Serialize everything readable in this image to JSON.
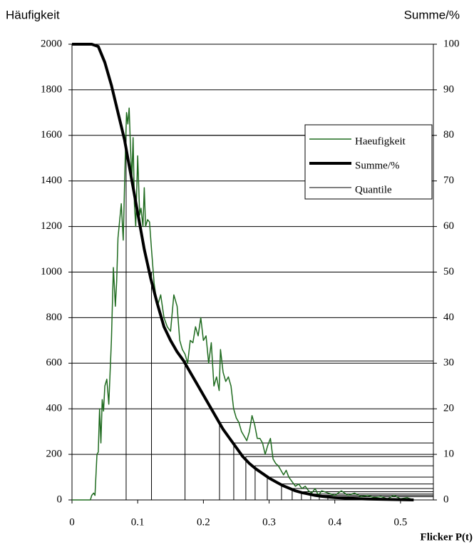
{
  "chart_data": {
    "type": "line",
    "y_label": "Häufigkeit",
    "y2_label": "Summe/%",
    "x_label": "Flicker P(t)",
    "xlim": [
      0,
      0.55
    ],
    "xticks": [
      0,
      0.1,
      0.2,
      0.3,
      0.4,
      0.5
    ],
    "ylim": [
      0,
      2000
    ],
    "yticks": [
      0,
      200,
      400,
      600,
      800,
      1000,
      1200,
      1400,
      1600,
      1800,
      2000
    ],
    "y2lim": [
      0,
      100
    ],
    "y2ticks": [
      0,
      10,
      20,
      30,
      40,
      50,
      60,
      70,
      80,
      90,
      100
    ],
    "grid": true,
    "legend": "right",
    "series": [
      {
        "name": "Haeufigkeit",
        "color": "#1f6b1f",
        "width": 1.5,
        "x": [
          0,
          0.028,
          0.03,
          0.033,
          0.035,
          0.038,
          0.04,
          0.042,
          0.044,
          0.046,
          0.048,
          0.05,
          0.053,
          0.056,
          0.06,
          0.063,
          0.066,
          0.068,
          0.07,
          0.075,
          0.078,
          0.081,
          0.083,
          0.085,
          0.087,
          0.089,
          0.091,
          0.093,
          0.095,
          0.097,
          0.1,
          0.103,
          0.105,
          0.108,
          0.11,
          0.112,
          0.115,
          0.118,
          0.121,
          0.125,
          0.13,
          0.135,
          0.14,
          0.145,
          0.15,
          0.155,
          0.16,
          0.164,
          0.168,
          0.172,
          0.176,
          0.18,
          0.184,
          0.188,
          0.192,
          0.196,
          0.2,
          0.204,
          0.208,
          0.212,
          0.216,
          0.22,
          0.224,
          0.226,
          0.23,
          0.234,
          0.238,
          0.242,
          0.246,
          0.25,
          0.254,
          0.258,
          0.262,
          0.266,
          0.27,
          0.274,
          0.278,
          0.282,
          0.286,
          0.29,
          0.294,
          0.298,
          0.302,
          0.306,
          0.31,
          0.314,
          0.318,
          0.322,
          0.326,
          0.33,
          0.335,
          0.34,
          0.345,
          0.35,
          0.355,
          0.36,
          0.365,
          0.37,
          0.375,
          0.38,
          0.39,
          0.4,
          0.41,
          0.42,
          0.43,
          0.44,
          0.45,
          0.46,
          0.47,
          0.48,
          0.49,
          0.5,
          0.51,
          0.52
        ],
        "values": [
          0,
          0,
          20,
          30,
          20,
          200,
          210,
          400,
          250,
          440,
          390,
          500,
          530,
          420,
          700,
          1020,
          850,
          960,
          1150,
          1300,
          1140,
          1500,
          1700,
          1650,
          1720,
          1550,
          1400,
          1590,
          1300,
          1200,
          1510,
          1250,
          1280,
          1200,
          1370,
          1200,
          1230,
          1220,
          1100,
          950,
          850,
          900,
          800,
          760,
          740,
          900,
          850,
          700,
          660,
          640,
          600,
          700,
          690,
          760,
          720,
          800,
          700,
          720,
          600,
          690,
          500,
          540,
          480,
          660,
          560,
          520,
          540,
          500,
          400,
          360,
          340,
          300,
          280,
          260,
          300,
          370,
          330,
          270,
          270,
          250,
          200,
          240,
          270,
          180,
          160,
          150,
          130,
          110,
          130,
          100,
          80,
          60,
          70,
          50,
          60,
          40,
          30,
          50,
          20,
          40,
          30,
          20,
          40,
          20,
          30,
          15,
          20,
          10,
          15,
          5,
          20,
          5,
          10,
          0
        ]
      },
      {
        "name": "Summe/%",
        "color": "#000000",
        "width": 4,
        "axis": "y2",
        "x": [
          0,
          0.03,
          0.04,
          0.05,
          0.06,
          0.07,
          0.08,
          0.09,
          0.1,
          0.11,
          0.12,
          0.13,
          0.14,
          0.15,
          0.16,
          0.17,
          0.18,
          0.19,
          0.2,
          0.21,
          0.22,
          0.23,
          0.24,
          0.25,
          0.26,
          0.27,
          0.28,
          0.29,
          0.3,
          0.31,
          0.32,
          0.33,
          0.34,
          0.35,
          0.36,
          0.37,
          0.38,
          0.4,
          0.42,
          0.45,
          0.5,
          0.52
        ],
        "values": [
          100,
          100,
          99.5,
          96,
          91,
          85,
          79,
          71,
          63,
          55,
          48.5,
          43,
          38,
          35,
          32.5,
          30.5,
          28,
          25.5,
          23,
          20.5,
          18,
          15.5,
          13.5,
          11.5,
          9.5,
          8,
          6.8,
          5.8,
          4.8,
          4,
          3.2,
          2.6,
          2,
          1.6,
          1.3,
          1,
          0.8,
          0.5,
          0.35,
          0.2,
          0.05,
          0
        ]
      },
      {
        "name": "Quantile",
        "color": "#000000",
        "width": 1,
        "axis": "y2",
        "style": "quantile",
        "x": [
          0.0824,
          0.121,
          0.172,
          0.2245,
          0.2462,
          0.2646,
          0.2787,
          0.2972,
          0.3189,
          0.3351,
          0.3492,
          0.3633,
          0.3764,
          0.3894
        ],
        "values": [
          80,
          50,
          30.5,
          17,
          12.5,
          9.5,
          7.5,
          5,
          3.5,
          2.5,
          1.8,
          1.3,
          1,
          0.7
        ]
      }
    ]
  }
}
